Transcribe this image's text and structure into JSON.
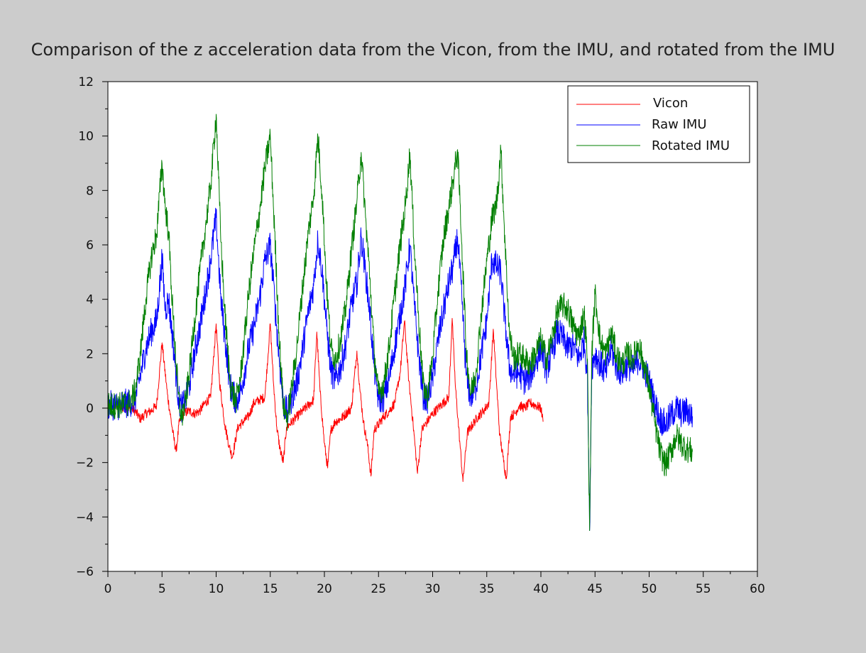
{
  "chart_data": {
    "type": "line",
    "title": "Comparison of the z acceleration data from the Vicon, from the IMU, and rotated from the IMU",
    "xlabel": "",
    "ylabel": "",
    "xlim": [
      0,
      60
    ],
    "ylim": [
      -6,
      12
    ],
    "x_ticks": [
      0,
      5,
      10,
      15,
      20,
      25,
      30,
      35,
      40,
      45,
      50,
      55,
      60
    ],
    "y_ticks": [
      -6,
      -4,
      -2,
      0,
      2,
      4,
      6,
      8,
      10,
      12
    ],
    "grid": false,
    "legend_position": "top-right",
    "series": [
      {
        "name": "Vicon",
        "color": "#ff0000",
        "x": [
          0,
          1,
          2,
          2.5,
          3,
          3.5,
          4,
          4.5,
          5,
          5.5,
          6,
          6.3,
          6.6,
          7,
          7.5,
          8,
          8.5,
          9,
          9.5,
          10,
          10.3,
          10.8,
          11.2,
          11.5,
          12,
          12.5,
          13,
          13.5,
          14,
          14.5,
          15,
          15.3,
          15.6,
          15.9,
          16.2,
          16.5,
          17,
          17.5,
          18,
          18.5,
          19,
          19.3,
          19.6,
          20,
          20.3,
          20.6,
          21,
          21.5,
          22,
          22.5,
          23,
          23.3,
          23.6,
          24,
          24.3,
          24.6,
          25,
          25.5,
          26,
          26.5,
          27,
          27.4,
          27.8,
          28.2,
          28.6,
          29,
          29.5,
          30,
          30.5,
          31,
          31.5,
          31.8,
          32.1,
          32.5,
          32.8,
          33.2,
          33.7,
          34.2,
          34.7,
          35.2,
          35.6,
          35.9,
          36.2,
          36.5,
          36.8,
          37.2,
          37.6,
          38,
          38.5,
          39,
          39.5,
          40,
          40.2
        ],
        "values": [
          0.05,
          0.05,
          0.0,
          -0.1,
          -0.4,
          -0.2,
          -0.1,
          0.1,
          2.4,
          0.5,
          -0.9,
          -1.6,
          -0.5,
          -0.2,
          -0.1,
          -0.2,
          -0.1,
          0.2,
          0.4,
          3.1,
          1.0,
          -0.6,
          -1.4,
          -1.8,
          -0.7,
          -0.5,
          -0.3,
          0.2,
          0.3,
          0.4,
          3.1,
          0.9,
          -0.7,
          -1.5,
          -2.0,
          -0.7,
          -0.5,
          -0.3,
          -0.1,
          0.1,
          0.3,
          2.8,
          0.6,
          -1.3,
          -2.2,
          -0.8,
          -0.5,
          -0.4,
          -0.2,
          0.0,
          2.1,
          0.6,
          -0.5,
          -1.4,
          -2.5,
          -0.8,
          -0.6,
          -0.3,
          -0.1,
          0.2,
          1.3,
          3.2,
          1.0,
          -0.6,
          -2.4,
          -0.8,
          -0.5,
          -0.2,
          0.0,
          0.2,
          0.4,
          3.3,
          0.8,
          -1.2,
          -2.7,
          -0.9,
          -0.6,
          -0.3,
          -0.1,
          0.2,
          2.9,
          0.9,
          -1.0,
          -1.8,
          -2.6,
          -0.3,
          -0.2,
          0.1,
          0.0,
          0.2,
          0.1,
          0.0,
          -0.5
        ]
      },
      {
        "name": "Raw IMU",
        "color": "#0000ff",
        "x": [
          0,
          1,
          2,
          2.5,
          3,
          3.5,
          4,
          4.5,
          5,
          5.3,
          5.6,
          6,
          6.5,
          6.8,
          7.2,
          7.6,
          8,
          8.5,
          9,
          9.5,
          10,
          10.4,
          10.8,
          11.3,
          11.8,
          12.2,
          12.6,
          13,
          13.5,
          14,
          14.5,
          15,
          15.4,
          15.8,
          16.2,
          16.6,
          17,
          17.5,
          18,
          18.5,
          19,
          19.4,
          19.8,
          20.2,
          20.6,
          21,
          21.5,
          22,
          22.5,
          23,
          23.4,
          23.8,
          24.2,
          24.6,
          25,
          25.5,
          26,
          26.5,
          27,
          27.5,
          27.9,
          28.3,
          28.7,
          29.1,
          29.5,
          30,
          30.5,
          31,
          31.5,
          31.9,
          32.3,
          32.7,
          33.1,
          33.5,
          34,
          34.5,
          35,
          35.5,
          35.9,
          36.3,
          36.7,
          37.1,
          37.5,
          38,
          38.5,
          39,
          39.5,
          40,
          40.5,
          41,
          41.5,
          42,
          42.5,
          43,
          43.5,
          44,
          44.3,
          44.5,
          44.7,
          45,
          45.5,
          46,
          46.5,
          47,
          47.5,
          48,
          48.5,
          49,
          49.5,
          50,
          50.5,
          51,
          51.5,
          52,
          52.5,
          53,
          53.5,
          54
        ],
        "values": [
          0.1,
          0.1,
          0.2,
          0.3,
          1.2,
          2.2,
          2.8,
          3.2,
          5.5,
          3.6,
          4.0,
          2.5,
          0.4,
          0.0,
          0.3,
          1.0,
          2.0,
          3.0,
          4.2,
          5.5,
          7.0,
          4.2,
          2.6,
          0.8,
          0.3,
          0.5,
          1.3,
          2.2,
          3.0,
          4.0,
          5.4,
          6.0,
          4.0,
          1.9,
          0.2,
          -0.2,
          0.4,
          1.0,
          2.2,
          3.5,
          4.5,
          6.2,
          5.0,
          3.0,
          1.4,
          1.0,
          1.5,
          2.4,
          3.8,
          4.6,
          6.3,
          5.0,
          3.5,
          1.5,
          0.3,
          0.4,
          1.1,
          2.3,
          3.4,
          4.6,
          6.0,
          3.8,
          2.0,
          0.5,
          0.3,
          1.1,
          2.5,
          3.6,
          4.6,
          5.2,
          6.3,
          4.0,
          1.2,
          0.4,
          0.8,
          2.0,
          3.2,
          5.5,
          5.2,
          5.0,
          3.1,
          1.5,
          1.2,
          1.3,
          1.0,
          1.2,
          1.6,
          2.3,
          1.4,
          2.0,
          2.8,
          2.6,
          2.2,
          2.3,
          1.8,
          2.5,
          1.2,
          -4.5,
          1.5,
          2.0,
          1.6,
          1.3,
          2.2,
          1.5,
          1.3,
          1.6,
          1.4,
          1.8,
          1.5,
          1.0,
          0.2,
          -0.4,
          -0.6,
          -0.3,
          0.0,
          -0.2,
          -0.1,
          -0.3
        ]
      },
      {
        "name": "Rotated IMU",
        "color": "#007f00",
        "x": [
          0,
          1,
          2,
          2.5,
          3,
          3.5,
          4,
          4.5,
          5,
          5.3,
          5.6,
          6,
          6.5,
          6.8,
          7.2,
          7.6,
          8,
          8.5,
          9,
          9.5,
          10,
          10.4,
          10.8,
          11.3,
          11.8,
          12.2,
          12.6,
          13,
          13.5,
          14,
          14.5,
          15,
          15.4,
          15.8,
          16.2,
          16.6,
          17,
          17.5,
          18,
          18.5,
          19,
          19.4,
          19.8,
          20.2,
          20.6,
          21,
          21.5,
          22,
          22.5,
          23,
          23.4,
          23.8,
          24.2,
          24.6,
          25,
          25.5,
          26,
          26.5,
          27,
          27.5,
          27.9,
          28.3,
          28.7,
          29.1,
          29.5,
          30,
          30.5,
          31,
          31.5,
          31.9,
          32.3,
          32.7,
          33.1,
          33.5,
          34,
          34.5,
          35,
          35.5,
          35.9,
          36.3,
          36.7,
          37.1,
          37.5,
          38,
          38.5,
          39,
          39.5,
          40,
          40.5,
          41,
          41.5,
          42,
          42.5,
          43,
          43.5,
          44,
          44.3,
          44.5,
          44.7,
          45,
          45.5,
          46,
          46.5,
          47,
          47.5,
          48,
          48.5,
          49,
          49.5,
          50,
          50.5,
          51,
          51.5,
          52,
          52.5,
          53,
          53.5,
          54
        ],
        "values": [
          0.1,
          0.1,
          0.2,
          0.6,
          2.0,
          4.0,
          5.5,
          6.4,
          9.0,
          7.4,
          6.5,
          3.5,
          0.5,
          -0.4,
          0.3,
          1.6,
          3.2,
          5.0,
          6.6,
          8.2,
          10.8,
          6.5,
          3.5,
          0.9,
          0.2,
          1.0,
          2.5,
          4.2,
          5.8,
          7.2,
          8.8,
          10.0,
          6.5,
          2.8,
          0.1,
          -0.4,
          0.8,
          2.4,
          4.5,
          6.4,
          7.8,
          10.0,
          7.8,
          4.5,
          2.2,
          1.8,
          2.5,
          3.8,
          5.8,
          7.6,
          9.4,
          7.0,
          4.8,
          2.0,
          0.5,
          0.9,
          2.3,
          4.2,
          6.0,
          7.5,
          9.4,
          6.0,
          3.4,
          0.9,
          0.4,
          1.9,
          4.3,
          6.2,
          7.4,
          8.4,
          9.5,
          6.0,
          2.2,
          0.5,
          1.3,
          3.5,
          5.4,
          7.0,
          7.5,
          9.5,
          6.0,
          2.7,
          1.8,
          2.0,
          1.8,
          1.6,
          2.0,
          2.5,
          1.8,
          2.5,
          3.5,
          3.8,
          3.6,
          3.0,
          2.6,
          3.5,
          1.8,
          -4.5,
          2.0,
          4.2,
          2.4,
          2.0,
          2.8,
          1.9,
          1.6,
          2.0,
          1.8,
          2.4,
          1.6,
          0.8,
          -0.5,
          -1.6,
          -2.1,
          -1.6,
          -1.0,
          -1.3,
          -1.5,
          -1.6
        ]
      }
    ]
  }
}
